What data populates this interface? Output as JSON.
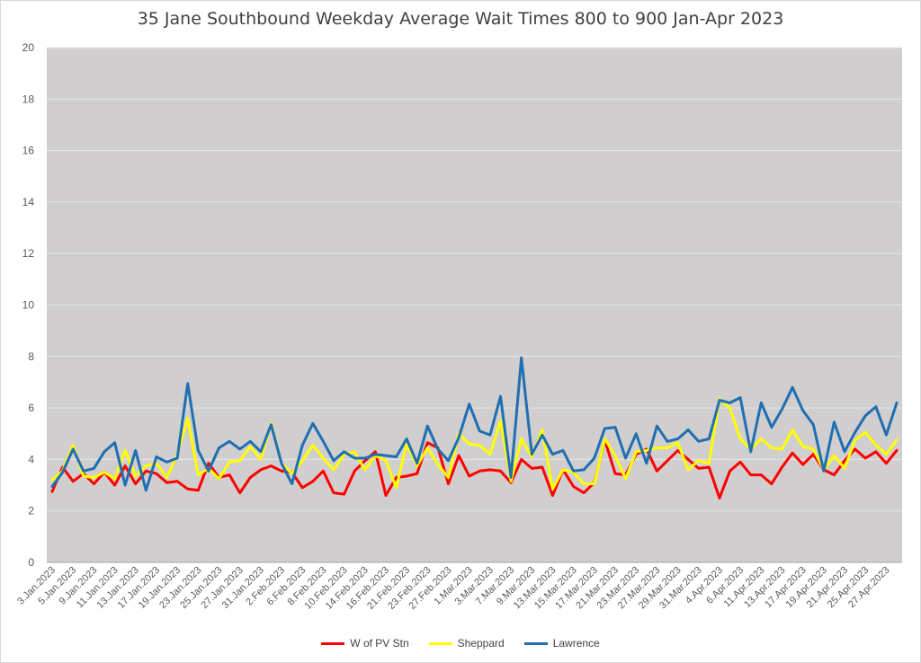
{
  "chart_data": {
    "type": "line",
    "title": "35 Jane Southbound Weekday Average Wait Times 800 to 900 Jan-Apr 2023",
    "ylim": [
      0,
      20
    ],
    "yticks": [
      0,
      2,
      4,
      6,
      8,
      10,
      12,
      14,
      16,
      18,
      20
    ],
    "grid": true,
    "legend_position": "bottom",
    "plot_background": "#d0cece",
    "x": [
      "3.Jan.2023",
      "4.Jan.2023",
      "5.Jan.2023",
      "6.Jan.2023",
      "9.Jan.2023",
      "10.Jan.2023",
      "11.Jan.2023",
      "12.Jan.2023",
      "13.Jan.2023",
      "16.Jan.2023",
      "17.Jan.2023",
      "18.Jan.2023",
      "19.Jan.2023",
      "20.Jan.2023",
      "23.Jan.2023",
      "24.Jan.2023",
      "25.Jan.2023",
      "26.Jan.2023",
      "27.Jan.2023",
      "30.Jan.2023",
      "31.Jan.2023",
      "1.Feb.2023",
      "2.Feb.2023",
      "3.Feb.2023",
      "6.Feb.2023",
      "7.Feb.2023",
      "8.Feb.2023",
      "9.Feb.2023",
      "10.Feb.2023",
      "13.Feb.2023",
      "14.Feb.2023",
      "15.Feb.2023",
      "16.Feb.2023",
      "17.Feb.2023",
      "21.Feb.2023",
      "22.Feb.2023",
      "23.Feb.2023",
      "24.Feb.2023",
      "27.Feb.2023",
      "28.Feb.2023",
      "1.Mar.2023",
      "2.Mar.2023",
      "3.Mar.2023",
      "6.Mar.2023",
      "7.Mar.2023",
      "8.Mar.2023",
      "9.Mar.2023",
      "10.Mar.2023",
      "13.Mar.2023",
      "14.Mar.2023",
      "15.Mar.2023",
      "16.Mar.2023",
      "17.Mar.2023",
      "20.Mar.2023",
      "21.Mar.2023",
      "22.Mar.2023",
      "23.Mar.2023",
      "24.Mar.2023",
      "27.Mar.2023",
      "28.Mar.2023",
      "29.Mar.2023",
      "30.Mar.2023",
      "31.Mar.2023",
      "3.Apr.2023",
      "4.Apr.2023",
      "5.Apr.2023",
      "6.Apr.2023",
      "10.Apr.2023",
      "11.Apr.2023",
      "12.Apr.2023",
      "13.Apr.2023",
      "14.Apr.2023",
      "17.Apr.2023",
      "18.Apr.2023",
      "19.Apr.2023",
      "20.Apr.2023",
      "21.Apr.2023",
      "24.Apr.2023",
      "25.Apr.2023",
      "26.Apr.2023",
      "27.Apr.2023",
      "28.Apr.2023"
    ],
    "xtick_labels": [
      "3.Jan.2023",
      "5.Jan.2023",
      "9.Jan.2023",
      "11.Jan.2023",
      "13.Jan.2023",
      "17.Jan.2023",
      "19.Jan.2023",
      "23.Jan.2023",
      "25.Jan.2023",
      "27.Jan.2023",
      "31.Jan.2023",
      "2.Feb.2023",
      "6.Feb.2023",
      "8.Feb.2023",
      "10.Feb.2023",
      "14.Feb.2023",
      "16.Feb.2023",
      "21.Feb.2023",
      "23.Feb.2023",
      "27.Feb.2023",
      "1.Mar.2023",
      "3.Mar.2023",
      "7.Mar.2023",
      "9.Mar.2023",
      "13.Mar.2023",
      "15.Mar.2023",
      "17.Mar.2023",
      "21.Mar.2023",
      "23.Mar.2023",
      "27.Mar.2023",
      "29.Mar.2023",
      "31.Mar.2023",
      "4.Apr.2023",
      "6.Apr.2023",
      "11.Apr.2023",
      "13.Apr.2023",
      "17.Apr.2023",
      "19.Apr.2023",
      "21.Apr.2023",
      "25.Apr.2023",
      "27.Apr.2023"
    ],
    "series": [
      {
        "name": "W of PV Stn",
        "color": "#ff0000",
        "values": [
          2.75,
          3.7,
          3.15,
          3.45,
          3.05,
          3.5,
          3.0,
          3.75,
          3.05,
          3.55,
          3.45,
          3.1,
          3.15,
          2.85,
          2.8,
          3.85,
          3.3,
          3.4,
          2.7,
          3.3,
          3.6,
          3.75,
          3.55,
          3.5,
          2.9,
          3.15,
          3.55,
          2.7,
          2.65,
          3.55,
          3.95,
          4.3,
          2.6,
          3.3,
          3.35,
          3.45,
          4.65,
          4.45,
          3.05,
          4.15,
          3.35,
          3.55,
          3.6,
          3.55,
          3.1,
          4.0,
          3.65,
          3.7,
          2.6,
          3.6,
          2.95,
          2.7,
          3.1,
          4.75,
          3.45,
          3.4,
          4.2,
          4.4,
          3.55,
          3.95,
          4.35,
          4.0,
          3.65,
          3.7,
          2.5,
          3.55,
          3.9,
          3.4,
          3.4,
          3.05,
          3.7,
          4.25,
          3.8,
          4.2,
          3.6,
          3.4,
          3.95,
          4.4,
          4.05,
          4.3,
          3.85,
          4.35
        ]
      },
      {
        "name": "Sheppard",
        "color": "#ffff00",
        "values": [
          3.2,
          3.55,
          4.55,
          3.35,
          3.3,
          3.5,
          3.25,
          4.35,
          3.35,
          3.75,
          3.85,
          3.3,
          4.2,
          5.6,
          3.4,
          3.65,
          3.25,
          3.9,
          3.95,
          4.5,
          4.0,
          5.4,
          3.85,
          3.45,
          3.95,
          4.55,
          4.05,
          3.6,
          4.2,
          4.3,
          3.6,
          4.15,
          3.95,
          2.9,
          4.6,
          3.75,
          4.45,
          3.8,
          3.3,
          5.0,
          4.6,
          4.55,
          4.2,
          5.5,
          3.15,
          4.8,
          4.1,
          5.15,
          2.85,
          3.6,
          3.5,
          3.05,
          3.05,
          4.8,
          4.15,
          3.25,
          4.3,
          4.35,
          4.45,
          4.45,
          4.65,
          3.6,
          3.95,
          3.85,
          6.35,
          6.0,
          4.8,
          4.4,
          4.8,
          4.45,
          4.4,
          5.15,
          4.5,
          4.4,
          3.6,
          4.15,
          3.65,
          4.75,
          5.05,
          4.55,
          4.2,
          4.75
        ]
      },
      {
        "name": "Lawrence",
        "color": "#1f6fb2",
        "values": [
          2.95,
          3.5,
          4.4,
          3.55,
          3.65,
          4.3,
          4.65,
          3.0,
          4.35,
          2.8,
          4.1,
          3.9,
          4.05,
          6.95,
          4.35,
          3.55,
          4.45,
          4.7,
          4.4,
          4.7,
          4.3,
          5.35,
          3.85,
          3.05,
          4.55,
          5.4,
          4.7,
          3.95,
          4.3,
          4.05,
          4.05,
          4.2,
          4.15,
          4.1,
          4.8,
          3.85,
          5.3,
          4.4,
          3.95,
          4.85,
          6.15,
          5.1,
          4.95,
          6.45,
          3.3,
          7.95,
          4.2,
          4.95,
          4.2,
          4.35,
          3.55,
          3.6,
          4.05,
          5.2,
          5.25,
          4.05,
          5.0,
          3.85,
          5.3,
          4.7,
          4.8,
          5.15,
          4.7,
          4.8,
          6.3,
          6.2,
          6.4,
          4.3,
          6.2,
          5.25,
          5.95,
          6.8,
          5.9,
          5.35,
          3.55,
          5.45,
          4.3,
          5.05,
          5.7,
          6.05,
          4.95,
          6.2
        ]
      }
    ]
  }
}
